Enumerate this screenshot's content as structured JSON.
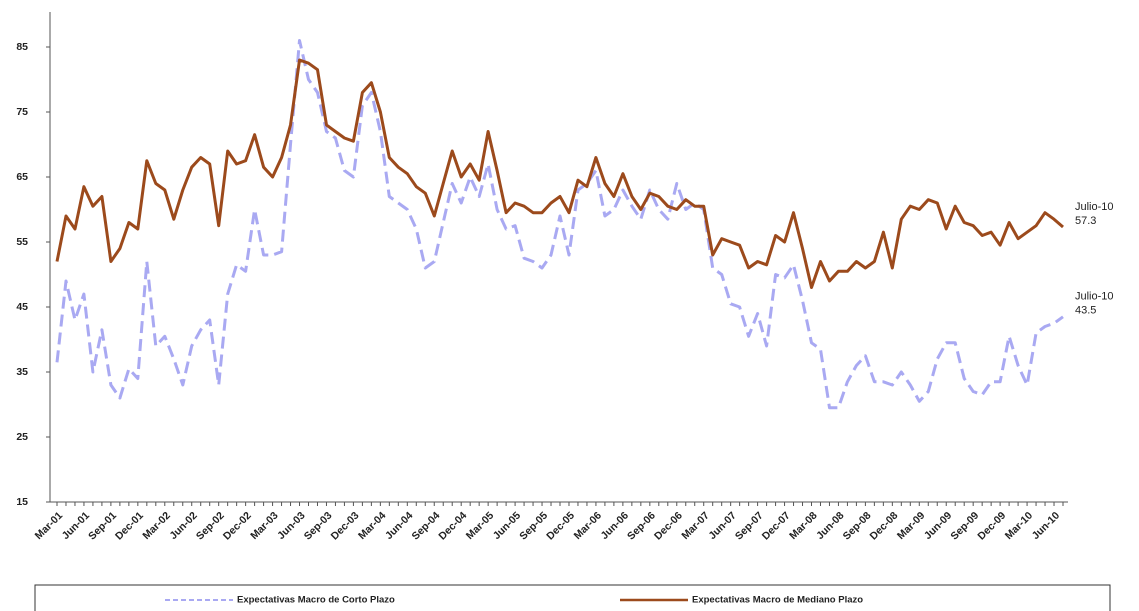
{
  "chart_data": {
    "type": "line",
    "categories": [
      "Mar-01",
      null,
      null,
      "Jun-01",
      null,
      null,
      "Sep-01",
      null,
      null,
      "Dec-01",
      null,
      null,
      "Mar-02",
      null,
      null,
      "Jun-02",
      null,
      null,
      "Sep-02",
      null,
      null,
      "Dec-02",
      null,
      null,
      "Mar-03",
      null,
      null,
      "Jun-03",
      null,
      null,
      "Sep-03",
      null,
      null,
      "Dec-03",
      null,
      null,
      "Mar-04",
      null,
      null,
      "Jun-04",
      null,
      null,
      "Sep-04",
      null,
      null,
      "Dec-04",
      null,
      null,
      "Mar-05",
      null,
      null,
      "Jun-05",
      null,
      null,
      "Sep-05",
      null,
      null,
      "Dec-05",
      null,
      null,
      "Mar-06",
      null,
      null,
      "Jun-06",
      null,
      null,
      "Sep-06",
      null,
      null,
      "Dec-06",
      null,
      null,
      "Mar-07",
      null,
      null,
      "Jun-07",
      null,
      null,
      "Sep-07",
      null,
      null,
      "Dec-07",
      null,
      null,
      "Mar-08",
      null,
      null,
      "Jun-08",
      null,
      null,
      "Sep-08",
      null,
      null,
      "Dec-08",
      null,
      null,
      "Mar-09",
      null,
      null,
      "Jun-09",
      null,
      null,
      "Sep-09",
      null,
      null,
      "Dec-09",
      null,
      null,
      "Mar-10",
      null,
      null,
      "Jun-10",
      null
    ],
    "series": [
      {
        "name": "Expectativas Macro de Corto Plazo",
        "color": "#a9a9f2",
        "dashed": true,
        "values": [
          36.5,
          49,
          43,
          47,
          35,
          41.5,
          33,
          31,
          35.5,
          34,
          52,
          39,
          40.5,
          37,
          33,
          39,
          41.5,
          43,
          33,
          47,
          51.5,
          50.5,
          60,
          53,
          53,
          53.5,
          70,
          86,
          80,
          78,
          72,
          71,
          66,
          65,
          76,
          78,
          72,
          62,
          61,
          60,
          57,
          51,
          52,
          58,
          64,
          61,
          65,
          62,
          67,
          60,
          57,
          57.5,
          52.5,
          52,
          51,
          53,
          59,
          53,
          63,
          64,
          66,
          59,
          60,
          63,
          60.5,
          58.5,
          63,
          60,
          58.5,
          64,
          60,
          61,
          60,
          51,
          50,
          45.5,
          45,
          40.5,
          44,
          39,
          50,
          49.5,
          51.5,
          46,
          39.5,
          38.5,
          29.5,
          29.5,
          33.5,
          36,
          37.5,
          33.5,
          33.5,
          33,
          35,
          33,
          30.5,
          32,
          37,
          39.5,
          39.5,
          34,
          32,
          31.5,
          33.5,
          33.5,
          40.5,
          36,
          33,
          41,
          42,
          42.5,
          43.5
        ]
      },
      {
        "name": "Expectativas Macro de Mediano Plazo",
        "color": "#9c4a1c",
        "dashed": false,
        "values": [
          52,
          59,
          57,
          63.5,
          60.5,
          62,
          52,
          54,
          58,
          57,
          67.5,
          64,
          63,
          58.5,
          63,
          66.5,
          68,
          67,
          57.5,
          69,
          67,
          67.5,
          71.5,
          66.5,
          65,
          68,
          73,
          83,
          82.5,
          81.5,
          73,
          72,
          71,
          70.5,
          78,
          79.5,
          75,
          68,
          66.5,
          65.5,
          63.5,
          62.5,
          59,
          64,
          69,
          65,
          67,
          64.5,
          72,
          66,
          59.5,
          61,
          60.5,
          59.5,
          59.5,
          61,
          62,
          59.5,
          64.5,
          63.5,
          68,
          64,
          62,
          65.5,
          62,
          60,
          62.5,
          62,
          60.5,
          60,
          61.5,
          60.5,
          60.5,
          53,
          55.5,
          55,
          54.5,
          51,
          52,
          51.5,
          56,
          55,
          59.5,
          54,
          48,
          52,
          49,
          50.5,
          50.5,
          52,
          51,
          52,
          56.5,
          51,
          58.5,
          60.5,
          60,
          61.5,
          61,
          57,
          60.5,
          58,
          57.5,
          56,
          56.5,
          54.5,
          58,
          55.5,
          56.5,
          57.5,
          59.5,
          58.5,
          57.3
        ]
      }
    ],
    "annotations": [
      "Julio-10",
      "Julio-10"
    ],
    "ylim": [
      15,
      88
    ],
    "yticks": [
      15,
      25,
      35,
      45,
      55,
      65,
      75,
      85
    ],
    "grid": false
  }
}
